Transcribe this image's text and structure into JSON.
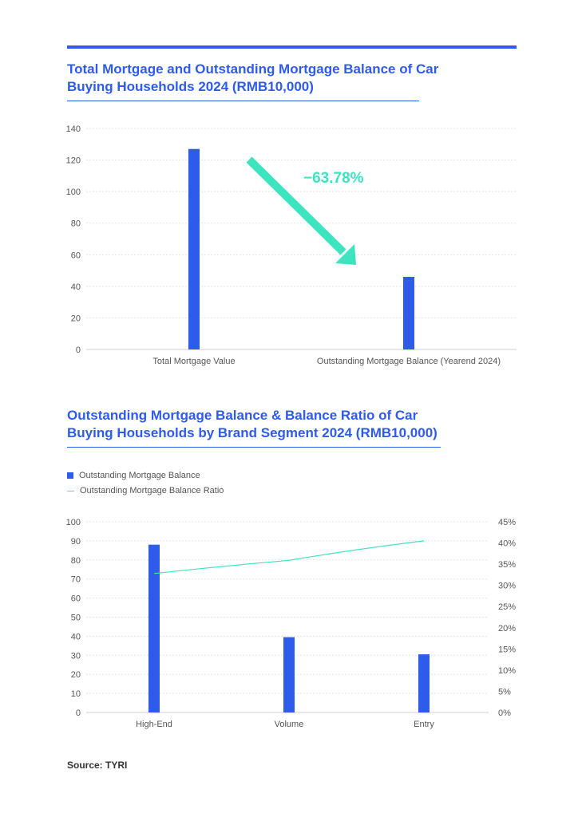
{
  "chart_data": [
    {
      "type": "bar",
      "title": "Total Mortgage and Outstanding Mortgage Balance of Car Buying Households 2024 (RMB10,000)",
      "categories": [
        "Total Mortgage Value",
        "Outstanding Mortgage Balance (Yearend 2024)"
      ],
      "values": [
        127,
        46
      ],
      "ylim": [
        0,
        140
      ],
      "yticks": [
        0,
        20,
        40,
        60,
        80,
        100,
        120,
        140
      ],
      "grid": true,
      "bar_color": "#2f5bea",
      "annotation": {
        "text": "−63.78%",
        "color": "#3ee3c0",
        "type": "arrow-down-right"
      }
    },
    {
      "type": "bar+line",
      "title": "Outstanding Mortgage Balance & Balance Ratio of Car Buying Households by Brand Segment 2024 (RMB10,000)",
      "categories": [
        "High-End",
        "Volume",
        "Entry"
      ],
      "series": [
        {
          "name": "Outstanding Mortgage Balance",
          "type": "bar",
          "axis": "left",
          "values": [
            88,
            39.5,
            30.5
          ],
          "color": "#2f5bea"
        },
        {
          "name": "Outstanding Mortgage Balance Ratio",
          "type": "line",
          "axis": "right",
          "values": [
            32.8,
            35.9,
            40.5
          ],
          "color": "#3ee3c0"
        }
      ],
      "ylim_left": [
        0,
        100
      ],
      "yticks_left": [
        0,
        10,
        20,
        30,
        40,
        50,
        60,
        70,
        80,
        90,
        100
      ],
      "ylim_right": [
        0,
        45
      ],
      "yticks_right": [
        "0%",
        "5%",
        "10%",
        "15%",
        "20%",
        "25%",
        "30%",
        "35%",
        "40%",
        "45%"
      ],
      "legend_position": "top-left",
      "grid": true
    }
  ],
  "source": "Source: TYRI"
}
